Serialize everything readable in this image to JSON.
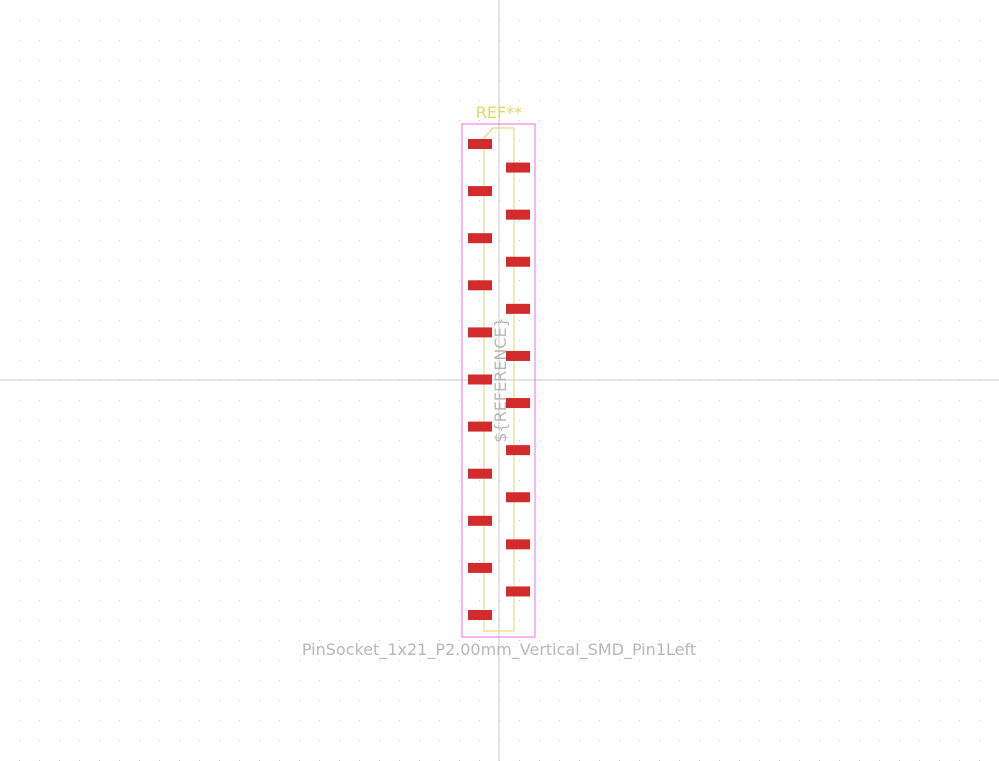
{
  "footprint": {
    "reference": "REF**",
    "value_field": "${REFERENCE}",
    "name": "PinSocket_1x21_P2.00mm_Vertical_SMD_Pin1Left",
    "pin_count": 21
  },
  "colors": {
    "background": "#ffffff",
    "grid_dot": "#c9c9c9",
    "axis": "#d4d4d4",
    "courtyard": "#e86ce8",
    "silkscreen": "#e6d66a",
    "fab_text": "#b8b8b8",
    "pad": "#d12b2b"
  }
}
